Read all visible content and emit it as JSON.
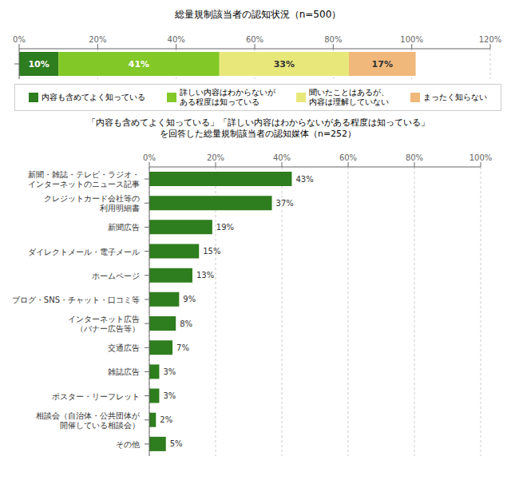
{
  "chart_data": [
    {
      "type": "bar",
      "orientation": "horizontal",
      "stacked": true,
      "title": "総量規制該当者の認知状況（n=500）",
      "categories": [
        null
      ],
      "series": [
        {
          "name": "内容も含めてよく知っている",
          "color": "#2e7d1e",
          "values": [
            10
          ],
          "value_labels": [
            "10%"
          ]
        },
        {
          "name": "詳しい内容はわからないが\nある程度は知っている",
          "color": "#82c826",
          "values": [
            41
          ],
          "value_labels": [
            "41%"
          ]
        },
        {
          "name": "聞いたことはあるが、\n内容は理解していない",
          "color": "#e8e87a",
          "values": [
            33
          ],
          "value_labels": [
            "33%"
          ]
        },
        {
          "name": "まったく知らない",
          "color": "#f0b87a",
          "values": [
            17
          ],
          "value_labels": [
            "17%"
          ]
        }
      ],
      "xlim": [
        0,
        120
      ],
      "xticks": [
        {
          "value": 0,
          "label": "0%"
        },
        {
          "value": 20,
          "label": "20%"
        },
        {
          "value": 40,
          "label": "40%"
        },
        {
          "value": 60,
          "label": "60%"
        },
        {
          "value": 80,
          "label": "80%"
        },
        {
          "value": 100,
          "label": "100%"
        },
        {
          "value": 120,
          "label": "120%"
        }
      ],
      "grid": true,
      "data_labels": true,
      "legend": "bottom"
    },
    {
      "type": "bar",
      "orientation": "horizontal",
      "title": "「内容も含めてよく知っている」「詳しい内容はわからないがある程度は知っている」\nを回答した総量規制該当者の認知媒体（n=252）",
      "categories": [
        "新聞・雑誌・テレビ・ラジオ・\nインターネットのニュース記事",
        "クレジットカード会社等の\n利用明細書",
        "新聞広告",
        "ダイレクトメール・電子メール",
        "ホームページ",
        "ブログ・SNS・チャット・口コミ等",
        "インターネット広告\n（バナー広告等）",
        "交通広告",
        "雑誌広告",
        "ポスター・リーフレット",
        "相談会（自治体・公共団体が\n開催している相談会）",
        "その他"
      ],
      "values": [
        43,
        37,
        19,
        15,
        13,
        9,
        8,
        7,
        3,
        3,
        2,
        5
      ],
      "value_labels": [
        "43%",
        "37%",
        "19%",
        "15%",
        "13%",
        "9%",
        "8%",
        "7%",
        "3%",
        "3%",
        "2%",
        "5%"
      ],
      "color": "#2e7d1e",
      "xlim": [
        0,
        100
      ],
      "xticks": [
        {
          "value": 0,
          "label": "0%"
        },
        {
          "value": 20,
          "label": "20%"
        },
        {
          "value": 40,
          "label": "40%"
        },
        {
          "value": 60,
          "label": "60%"
        },
        {
          "value": 80,
          "label": "80%"
        },
        {
          "value": 100,
          "label": "100%"
        }
      ],
      "grid": true,
      "data_labels": true
    }
  ]
}
